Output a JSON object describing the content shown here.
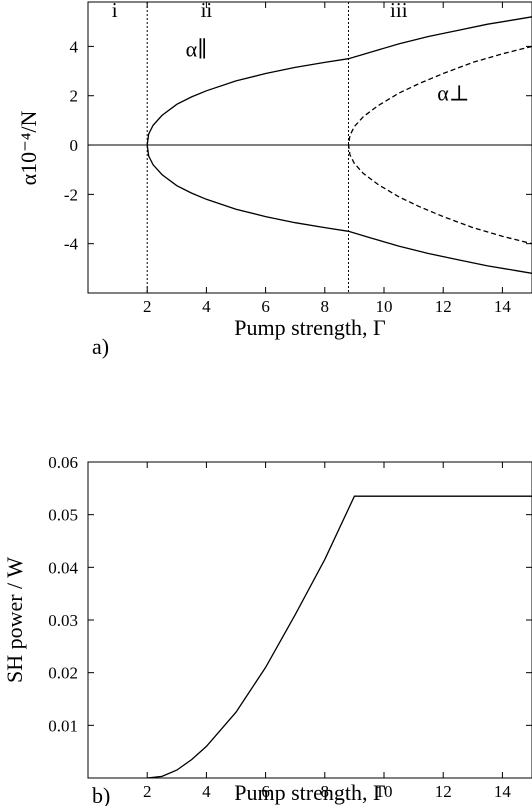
{
  "chart_data": [
    {
      "type": "line",
      "panel_label": "a)",
      "xlabel": "Pump strength, Γ",
      "ylabel": "α10⁻⁴/N",
      "xlim": [
        0,
        15
      ],
      "ylim": [
        -6,
        5.8
      ],
      "x_ticks": [
        2,
        4,
        6,
        8,
        10,
        12,
        14
      ],
      "x_tick_labels": [
        "2",
        "4",
        "6",
        "8",
        "10",
        "12",
        "14"
      ],
      "y_ticks": [
        4,
        2,
        0,
        -2,
        -4
      ],
      "y_tick_labels": [
        "4",
        "2",
        "0",
        "-2",
        "-4"
      ],
      "grid": false,
      "zero_line": true,
      "vertical_lines": [
        2.0,
        8.8
      ],
      "regions": [
        {
          "label": "i",
          "x": 0.9,
          "y": 5.2
        },
        {
          "label": "ii",
          "x": 4.0,
          "y": 5.2
        },
        {
          "label": "iii",
          "x": 10.5,
          "y": 5.2
        }
      ],
      "series": [
        {
          "name": "α∥",
          "label_x": 3.3,
          "label_y": 3.6,
          "style": "solid",
          "x": [
            2.0,
            2.05,
            2.2,
            2.5,
            3.0,
            3.5,
            4.0,
            5.0,
            6.0,
            7.0,
            8.0,
            8.8,
            9.5,
            10.5,
            11.5,
            12.5,
            13.5,
            14.5,
            15.0
          ],
          "y_upper": [
            0.0,
            0.45,
            0.8,
            1.2,
            1.65,
            1.95,
            2.2,
            2.6,
            2.9,
            3.15,
            3.35,
            3.5,
            3.75,
            4.1,
            4.4,
            4.65,
            4.9,
            5.1,
            5.2
          ],
          "y_lower": [
            0.0,
            -0.45,
            -0.8,
            -1.2,
            -1.65,
            -1.95,
            -2.2,
            -2.6,
            -2.9,
            -3.15,
            -3.35,
            -3.5,
            -3.75,
            -4.1,
            -4.4,
            -4.65,
            -4.9,
            -5.1,
            -5.2
          ]
        },
        {
          "name": "α⊥",
          "label_x": 11.8,
          "label_y": 1.8,
          "style": "dashed",
          "x": [
            8.8,
            8.85,
            9.0,
            9.3,
            9.8,
            10.5,
            11.2,
            12.0,
            13.0,
            14.0,
            15.0
          ],
          "y_upper": [
            0.0,
            0.4,
            0.75,
            1.15,
            1.6,
            2.1,
            2.5,
            2.9,
            3.35,
            3.7,
            4.0
          ],
          "y_lower": [
            0.0,
            -0.4,
            -0.75,
            -1.15,
            -1.6,
            -2.1,
            -2.5,
            -2.9,
            -3.35,
            -3.7,
            -4.0
          ]
        }
      ]
    },
    {
      "type": "line",
      "panel_label": "b)",
      "xlabel": "Pump strength, Γ",
      "ylabel": "SH power / W",
      "xlim": [
        0,
        15
      ],
      "ylim": [
        0,
        0.06
      ],
      "x_ticks": [
        2,
        4,
        6,
        8,
        10,
        12,
        14
      ],
      "x_tick_labels": [
        "2",
        "4",
        "6",
        "8",
        "10",
        "12",
        "14"
      ],
      "y_ticks": [
        0.01,
        0.02,
        0.03,
        0.04,
        0.05,
        0.06
      ],
      "y_tick_labels": [
        "0.01",
        "0.02",
        "0.03",
        "0.04",
        "0.05",
        "0.06"
      ],
      "grid": false,
      "series": [
        {
          "x": [
            2.0,
            2.5,
            3.0,
            3.5,
            4.0,
            5.0,
            6.0,
            7.0,
            8.0,
            9.0,
            10.0,
            12.0,
            14.0,
            15.0
          ],
          "y": [
            0.0,
            0.0003,
            0.0015,
            0.0035,
            0.006,
            0.0125,
            0.021,
            0.031,
            0.0415,
            0.0535,
            0.0535,
            0.0535,
            0.0535,
            0.0535
          ]
        }
      ]
    }
  ]
}
